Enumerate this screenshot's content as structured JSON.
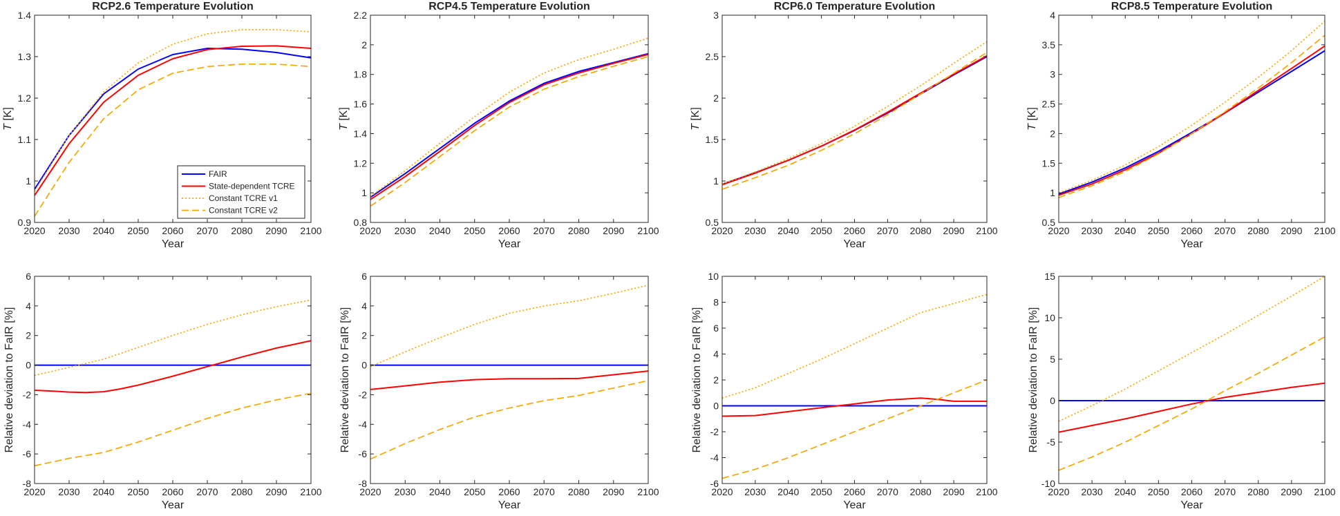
{
  "legend_series": [
    "FAIR",
    "State-dependent TCRE",
    "Constant TCRE v1",
    "Constant TCRE v2"
  ],
  "chart_data": [
    {
      "type": "line",
      "title": "RCP2.6 Temperature Evolution",
      "xlabel": "Year",
      "ylabel_var": "T",
      "ylabel_unit": " [K]",
      "xlim": [
        2020,
        2100
      ],
      "ylim": [
        0.9,
        1.4
      ],
      "xticks": [
        2020,
        2030,
        2040,
        2050,
        2060,
        2070,
        2080,
        2090,
        2100
      ],
      "yticks": [
        "0.9",
        "1",
        "1.1",
        "1.2",
        "1.3",
        "1.4"
      ],
      "legend": "inside-bottom-right",
      "series": [
        {
          "name": "FAIR",
          "color": "#0000ff",
          "dash": "solid",
          "x": [
            2020,
            2030,
            2040,
            2050,
            2060,
            2070,
            2080,
            2090,
            2100
          ],
          "y": [
            0.98,
            1.11,
            1.21,
            1.27,
            1.305,
            1.32,
            1.318,
            1.31,
            1.297
          ]
        },
        {
          "name": "State-dependent TCRE",
          "color": "#ff0000",
          "dash": "solid",
          "x": [
            2020,
            2030,
            2040,
            2050,
            2060,
            2070,
            2080,
            2090,
            2100
          ],
          "y": [
            0.965,
            1.09,
            1.19,
            1.255,
            1.295,
            1.317,
            1.325,
            1.326,
            1.32
          ]
        },
        {
          "name": "Constant TCRE v1",
          "color": "#f5a700",
          "dash": "dotted",
          "x": [
            2020,
            2030,
            2040,
            2050,
            2060,
            2070,
            2080,
            2090,
            2100
          ],
          "y": [
            0.975,
            1.11,
            1.215,
            1.285,
            1.33,
            1.355,
            1.365,
            1.365,
            1.36
          ]
        },
        {
          "name": "Constant TCRE v2",
          "color": "#f5a700",
          "dash": "dashed",
          "x": [
            2020,
            2030,
            2040,
            2050,
            2060,
            2070,
            2080,
            2090,
            2100
          ],
          "y": [
            0.915,
            1.045,
            1.15,
            1.22,
            1.26,
            1.276,
            1.282,
            1.282,
            1.276
          ]
        }
      ]
    },
    {
      "type": "line",
      "title": "RCP4.5 Temperature Evolution",
      "xlabel": "Year",
      "ylabel_var": "T",
      "ylabel_unit": " [K]",
      "xlim": [
        2020,
        2100
      ],
      "ylim": [
        0.8,
        2.2
      ],
      "xticks": [
        2020,
        2030,
        2040,
        2050,
        2060,
        2070,
        2080,
        2090,
        2100
      ],
      "yticks": [
        "0.8",
        "1",
        "1.2",
        "1.4",
        "1.6",
        "1.8",
        "2",
        "2.2"
      ],
      "legend": "none",
      "series": [
        {
          "name": "FAIR",
          "color": "#0000ff",
          "dash": "solid",
          "x": [
            2020,
            2030,
            2040,
            2050,
            2060,
            2070,
            2080,
            2090,
            2100
          ],
          "y": [
            0.97,
            1.13,
            1.3,
            1.47,
            1.62,
            1.74,
            1.82,
            1.88,
            1.94
          ]
        },
        {
          "name": "State-dependent TCRE",
          "color": "#ff0000",
          "dash": "solid",
          "x": [
            2020,
            2030,
            2040,
            2050,
            2060,
            2070,
            2080,
            2090,
            2100
          ],
          "y": [
            0.955,
            1.11,
            1.28,
            1.455,
            1.61,
            1.73,
            1.81,
            1.875,
            1.935
          ]
        },
        {
          "name": "Constant TCRE v1",
          "color": "#f5a700",
          "dash": "dotted",
          "x": [
            2020,
            2030,
            2040,
            2050,
            2060,
            2070,
            2080,
            2090,
            2100
          ],
          "y": [
            0.975,
            1.15,
            1.335,
            1.515,
            1.68,
            1.81,
            1.9,
            1.97,
            2.045
          ]
        },
        {
          "name": "Constant TCRE v2",
          "color": "#f5a700",
          "dash": "dashed",
          "x": [
            2020,
            2030,
            2040,
            2050,
            2060,
            2070,
            2080,
            2090,
            2100
          ],
          "y": [
            0.91,
            1.07,
            1.245,
            1.42,
            1.58,
            1.7,
            1.785,
            1.855,
            1.92
          ]
        }
      ]
    },
    {
      "type": "line",
      "title": "RCP6.0 Temperature Evolution",
      "xlabel": "Year",
      "ylabel_var": "T",
      "ylabel_unit": " [K]",
      "xlim": [
        2020,
        2100
      ],
      "ylim": [
        0.5,
        3
      ],
      "xticks": [
        2020,
        2030,
        2040,
        2050,
        2060,
        2070,
        2080,
        2090,
        2100
      ],
      "yticks": [
        "0.5",
        "1",
        "1.5",
        "2",
        "2.5",
        "3"
      ],
      "legend": "none",
      "series": [
        {
          "name": "FAIR",
          "color": "#0000ff",
          "dash": "solid",
          "x": [
            2020,
            2030,
            2040,
            2050,
            2060,
            2070,
            2080,
            2090,
            2100
          ],
          "y": [
            0.96,
            1.1,
            1.25,
            1.42,
            1.61,
            1.82,
            2.05,
            2.28,
            2.5
          ]
        },
        {
          "name": "State-dependent TCRE",
          "color": "#ff0000",
          "dash": "solid",
          "x": [
            2020,
            2030,
            2040,
            2050,
            2060,
            2070,
            2080,
            2090,
            2100
          ],
          "y": [
            0.955,
            1.095,
            1.25,
            1.42,
            1.615,
            1.83,
            2.06,
            2.29,
            2.51
          ]
        },
        {
          "name": "Constant TCRE v1",
          "color": "#f5a700",
          "dash": "dotted",
          "x": [
            2020,
            2030,
            2040,
            2050,
            2060,
            2070,
            2080,
            2090,
            2100
          ],
          "y": [
            0.965,
            1.11,
            1.27,
            1.45,
            1.66,
            1.9,
            2.15,
            2.42,
            2.68
          ]
        },
        {
          "name": "Constant TCRE v2",
          "color": "#f5a700",
          "dash": "dashed",
          "x": [
            2020,
            2030,
            2040,
            2050,
            2060,
            2070,
            2080,
            2090,
            2100
          ],
          "y": [
            0.9,
            1.04,
            1.19,
            1.37,
            1.57,
            1.8,
            2.05,
            2.3,
            2.55
          ]
        }
      ]
    },
    {
      "type": "line",
      "title": "RCP8.5 Temperature Evolution",
      "xlabel": "Year",
      "ylabel_var": "T",
      "ylabel_unit": " [K]",
      "xlim": [
        2020,
        2100
      ],
      "ylim": [
        0.5,
        4
      ],
      "xticks": [
        2020,
        2030,
        2040,
        2050,
        2060,
        2070,
        2080,
        2090,
        2100
      ],
      "yticks": [
        "0.5",
        "1",
        "1.5",
        "2",
        "2.5",
        "3",
        "3.5",
        "4"
      ],
      "legend": "none",
      "series": [
        {
          "name": "FAIR",
          "color": "#0000ff",
          "dash": "solid",
          "x": [
            2020,
            2030,
            2040,
            2050,
            2060,
            2070,
            2080,
            2090,
            2100
          ],
          "y": [
            0.98,
            1.18,
            1.42,
            1.7,
            2.02,
            2.35,
            2.7,
            3.05,
            3.4
          ]
        },
        {
          "name": "State-dependent TCRE",
          "color": "#ff0000",
          "dash": "solid",
          "x": [
            2020,
            2030,
            2040,
            2050,
            2060,
            2070,
            2080,
            2090,
            2100
          ],
          "y": [
            0.96,
            1.15,
            1.39,
            1.67,
            2.0,
            2.35,
            2.73,
            3.1,
            3.48
          ]
        },
        {
          "name": "Constant TCRE v1",
          "color": "#f5a700",
          "dash": "dotted",
          "x": [
            2020,
            2030,
            2040,
            2050,
            2060,
            2070,
            2080,
            2090,
            2100
          ],
          "y": [
            1.0,
            1.21,
            1.47,
            1.78,
            2.14,
            2.53,
            2.95,
            3.4,
            3.9
          ]
        },
        {
          "name": "Constant TCRE v2",
          "color": "#f5a700",
          "dash": "dashed",
          "x": [
            2020,
            2030,
            2040,
            2050,
            2060,
            2070,
            2080,
            2090,
            2100
          ],
          "y": [
            0.92,
            1.12,
            1.36,
            1.66,
            2.0,
            2.37,
            2.77,
            3.2,
            3.66
          ]
        }
      ]
    },
    {
      "type": "line",
      "title": "",
      "xlabel": "Year",
      "ylabel": "Relative deviation to FaIR [%]",
      "xlim": [
        2020,
        2100
      ],
      "ylim": [
        -8,
        6
      ],
      "xticks": [
        2020,
        2030,
        2040,
        2050,
        2060,
        2070,
        2080,
        2090,
        2100
      ],
      "yticks": [
        "-8",
        "-6",
        "-4",
        "-2",
        "0",
        "2",
        "4",
        "6"
      ],
      "legend": "none",
      "series": [
        {
          "name": "FAIR",
          "color": "#0000ff",
          "dash": "solid",
          "x": [
            2020,
            2100
          ],
          "y": [
            0,
            0
          ]
        },
        {
          "name": "State-dependent TCRE",
          "color": "#ff0000",
          "dash": "solid",
          "x": [
            2020,
            2025,
            2030,
            2035,
            2040,
            2045,
            2050,
            2055,
            2060,
            2065,
            2070,
            2075,
            2080,
            2085,
            2090,
            2095,
            2100
          ],
          "y": [
            -1.7,
            -1.75,
            -1.82,
            -1.85,
            -1.8,
            -1.6,
            -1.35,
            -1.05,
            -0.75,
            -0.42,
            -0.1,
            0.22,
            0.55,
            0.85,
            1.15,
            1.4,
            1.65
          ]
        },
        {
          "name": "Constant TCRE v1",
          "color": "#f5a700",
          "dash": "dotted",
          "x": [
            2020,
            2030,
            2040,
            2050,
            2060,
            2070,
            2080,
            2090,
            2100
          ],
          "y": [
            -0.7,
            -0.15,
            0.4,
            1.2,
            2.0,
            2.75,
            3.4,
            3.95,
            4.4
          ]
        },
        {
          "name": "Constant TCRE v2",
          "color": "#f5a700",
          "dash": "dashed",
          "x": [
            2020,
            2030,
            2040,
            2050,
            2060,
            2070,
            2080,
            2090,
            2100
          ],
          "y": [
            -6.8,
            -6.3,
            -5.9,
            -5.2,
            -4.4,
            -3.6,
            -2.9,
            -2.35,
            -1.9
          ]
        }
      ]
    },
    {
      "type": "line",
      "title": "",
      "xlabel": "Year",
      "ylabel": "Relative deviation to FaIR [%]",
      "xlim": [
        2020,
        2100
      ],
      "ylim": [
        -8,
        6
      ],
      "xticks": [
        2020,
        2030,
        2040,
        2050,
        2060,
        2070,
        2080,
        2090,
        2100
      ],
      "yticks": [
        "-8",
        "-6",
        "-4",
        "-2",
        "0",
        "2",
        "4",
        "6"
      ],
      "legend": "none",
      "series": [
        {
          "name": "FAIR",
          "color": "#0000ff",
          "dash": "solid",
          "x": [
            2020,
            2100
          ],
          "y": [
            0,
            0
          ]
        },
        {
          "name": "State-dependent TCRE",
          "color": "#ff0000",
          "dash": "solid",
          "x": [
            2020,
            2030,
            2040,
            2050,
            2060,
            2070,
            2080,
            2090,
            2100
          ],
          "y": [
            -1.65,
            -1.4,
            -1.15,
            -0.98,
            -0.92,
            -0.92,
            -0.9,
            -0.65,
            -0.4
          ]
        },
        {
          "name": "Constant TCRE v1",
          "color": "#f5a700",
          "dash": "dotted",
          "x": [
            2020,
            2030,
            2040,
            2050,
            2060,
            2070,
            2080,
            2090,
            2100
          ],
          "y": [
            -0.1,
            0.9,
            1.85,
            2.75,
            3.5,
            4.0,
            4.35,
            4.85,
            5.4
          ]
        },
        {
          "name": "Constant TCRE v2",
          "color": "#f5a700",
          "dash": "dashed",
          "x": [
            2020,
            2030,
            2040,
            2050,
            2060,
            2070,
            2080,
            2090,
            2100
          ],
          "y": [
            -6.35,
            -5.3,
            -4.35,
            -3.5,
            -2.9,
            -2.4,
            -2.05,
            -1.55,
            -1.05
          ]
        }
      ]
    },
    {
      "type": "line",
      "title": "",
      "xlabel": "Year",
      "ylabel": "Relative deviation to FaIR [%]",
      "xlim": [
        2020,
        2100
      ],
      "ylim": [
        -6,
        10
      ],
      "xticks": [
        2020,
        2030,
        2040,
        2050,
        2060,
        2070,
        2080,
        2090,
        2100
      ],
      "yticks": [
        "-6",
        "-4",
        "-2",
        "0",
        "2",
        "4",
        "6",
        "8",
        "10"
      ],
      "legend": "none",
      "series": [
        {
          "name": "FAIR",
          "color": "#0000ff",
          "dash": "solid",
          "x": [
            2020,
            2100
          ],
          "y": [
            0,
            0
          ]
        },
        {
          "name": "State-dependent TCRE",
          "color": "#ff0000",
          "dash": "solid",
          "x": [
            2020,
            2030,
            2040,
            2050,
            2060,
            2070,
            2080,
            2085,
            2090,
            2100
          ],
          "y": [
            -0.8,
            -0.75,
            -0.45,
            -0.15,
            0.15,
            0.45,
            0.6,
            0.5,
            0.35,
            0.35
          ]
        },
        {
          "name": "Constant TCRE v1",
          "color": "#f5a700",
          "dash": "dotted",
          "x": [
            2020,
            2030,
            2040,
            2050,
            2060,
            2070,
            2080,
            2090,
            2100
          ],
          "y": [
            0.6,
            1.4,
            2.5,
            3.6,
            4.8,
            6.0,
            7.2,
            7.9,
            8.6
          ]
        },
        {
          "name": "Constant TCRE v2",
          "color": "#f5a700",
          "dash": "dashed",
          "x": [
            2020,
            2030,
            2040,
            2050,
            2060,
            2070,
            2080,
            2090,
            2100
          ],
          "y": [
            -5.6,
            -4.9,
            -4.0,
            -3.0,
            -2.0,
            -1.0,
            0.0,
            1.0,
            2.0
          ]
        }
      ]
    },
    {
      "type": "line",
      "title": "",
      "xlabel": "Year",
      "ylabel": "Relative deviation to FaIR [%]",
      "xlim": [
        2020,
        2100
      ],
      "ylim": [
        -10,
        15
      ],
      "xticks": [
        2020,
        2030,
        2040,
        2050,
        2060,
        2070,
        2080,
        2090,
        2100
      ],
      "yticks": [
        "-10",
        "-5",
        "0",
        "5",
        "10",
        "15"
      ],
      "legend": "none",
      "series": [
        {
          "name": "FAIR",
          "color": "#0000ff",
          "dash": "solid",
          "x": [
            2020,
            2100
          ],
          "y": [
            0,
            0
          ]
        },
        {
          "name": "State-dependent TCRE",
          "color": "#ff0000",
          "dash": "solid",
          "x": [
            2020,
            2030,
            2040,
            2050,
            2060,
            2070,
            2080,
            2090,
            2100
          ],
          "y": [
            -3.8,
            -3.0,
            -2.2,
            -1.3,
            -0.4,
            0.4,
            1.0,
            1.6,
            2.1
          ]
        },
        {
          "name": "Constant TCRE v1",
          "color": "#f5a700",
          "dash": "dotted",
          "x": [
            2020,
            2030,
            2040,
            2050,
            2060,
            2070,
            2080,
            2090,
            2100
          ],
          "y": [
            -2.5,
            -0.6,
            1.4,
            3.6,
            5.8,
            8.0,
            10.3,
            12.6,
            15.0
          ]
        },
        {
          "name": "Constant TCRE v2",
          "color": "#f5a700",
          "dash": "dashed",
          "x": [
            2020,
            2030,
            2040,
            2050,
            2060,
            2070,
            2080,
            2090,
            2100
          ],
          "y": [
            -8.4,
            -6.8,
            -5.0,
            -3.0,
            -1.0,
            1.2,
            3.3,
            5.5,
            7.7
          ]
        }
      ]
    }
  ]
}
